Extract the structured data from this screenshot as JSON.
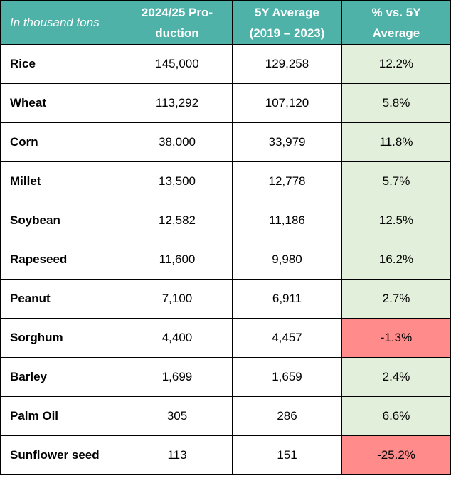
{
  "table": {
    "header": {
      "unit": "In thousand tons",
      "col_production": "2024/25 Pro-duction",
      "col_average_line1": "5Y Average",
      "col_average_line2": "(2019 – 2023)",
      "col_change_line1": "% vs. 5Y",
      "col_change_line2": "Average"
    },
    "rows": [
      {
        "crop": "Rice",
        "production": "145,000",
        "average": "129,258",
        "change": "12.2%",
        "status": "positive"
      },
      {
        "crop": "Wheat",
        "production": "113,292",
        "average": "107,120",
        "change": "5.8%",
        "status": "positive"
      },
      {
        "crop": "Corn",
        "production": "38,000",
        "average": "33,979",
        "change": "11.8%",
        "status": "positive"
      },
      {
        "crop": "Millet",
        "production": "13,500",
        "average": "12,778",
        "change": "5.7%",
        "status": "positive"
      },
      {
        "crop": "Soybean",
        "production": "12,582",
        "average": "11,186",
        "change": "12.5%",
        "status": "positive"
      },
      {
        "crop": "Rapeseed",
        "production": "11,600",
        "average": "9,980",
        "change": "16.2%",
        "status": "positive"
      },
      {
        "crop": "Peanut",
        "production": "7,100",
        "average": "6,911",
        "change": "2.7%",
        "status": "positive"
      },
      {
        "crop": "Sorghum",
        "production": "4,400",
        "average": "4,457",
        "change": "-1.3%",
        "status": "negative"
      },
      {
        "crop": "Barley",
        "production": "1,699",
        "average": "1,659",
        "change": "2.4%",
        "status": "positive"
      },
      {
        "crop": "Palm Oil",
        "production": "305",
        "average": "286",
        "change": "6.6%",
        "status": "positive"
      },
      {
        "crop": "Sunflower seed",
        "production": "113",
        "average": "151",
        "change": "-25.2%",
        "status": "negative"
      }
    ],
    "colors": {
      "header_bg": "#4fb2a9",
      "header_text": "#ffffff",
      "positive_bg": "#e2efda",
      "negative_bg": "#ff8b8b",
      "border": "#000000"
    }
  }
}
